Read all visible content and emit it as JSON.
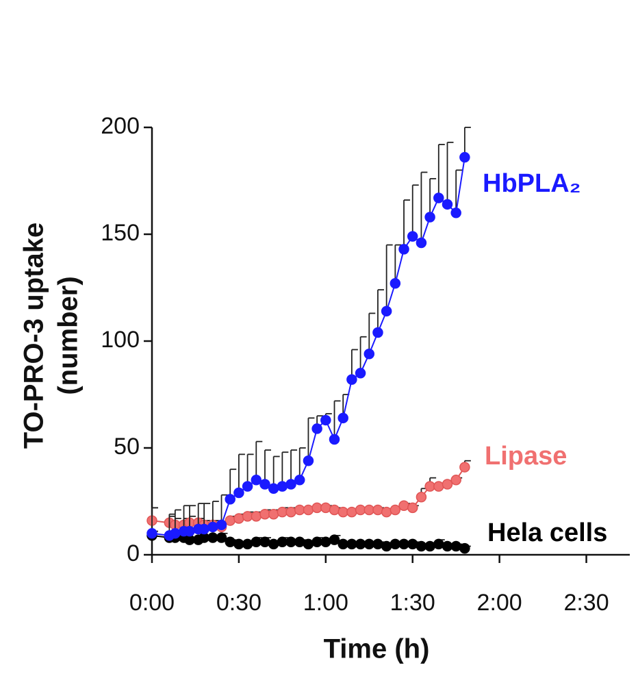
{
  "chart_data": {
    "type": "line",
    "xlabel": "Time (h)",
    "ylabel": [
      "TO-PRO-3 uptake",
      "(number)"
    ],
    "x": [
      0,
      6,
      8,
      11,
      13,
      16,
      18,
      21,
      24,
      27,
      30,
      33,
      36,
      39,
      42,
      45,
      48,
      51,
      54,
      57,
      60,
      63,
      66,
      69,
      72,
      75,
      78,
      81,
      84,
      87,
      90,
      93,
      96,
      99,
      102,
      105,
      108
    ],
    "xlim": [
      0,
      165
    ],
    "xticks": [
      {
        "value": 0,
        "label": "0:00"
      },
      {
        "value": 30,
        "label": "0:30"
      },
      {
        "value": 60,
        "label": "1:00"
      },
      {
        "value": 90,
        "label": "1:30"
      },
      {
        "value": 120,
        "label": "2:00"
      },
      {
        "value": 150,
        "label": "2:30"
      }
    ],
    "ylim": [
      0,
      200
    ],
    "yticks": [
      0,
      50,
      100,
      150,
      200
    ],
    "series": [
      {
        "name": "Lipase",
        "color": "#f07070",
        "values": [
          16,
          15,
          14,
          14,
          15,
          15,
          14,
          14,
          13,
          16,
          17,
          18,
          18,
          19,
          19,
          20,
          20,
          21,
          21,
          22,
          22,
          21,
          20,
          20,
          21,
          21,
          21,
          20,
          21,
          23,
          22,
          27,
          32,
          32,
          33,
          35,
          41
        ],
        "errors": [
          6,
          3,
          3,
          3,
          3,
          2,
          2,
          2,
          2,
          2,
          2,
          2,
          2,
          2,
          2,
          2,
          2,
          1,
          1,
          1,
          1,
          1,
          1,
          1,
          1,
          1,
          1,
          1,
          1,
          1,
          1,
          4,
          4,
          1,
          1,
          1,
          3
        ]
      },
      {
        "name": "Hela cells",
        "color": "#000000",
        "values": [
          9,
          8,
          8,
          8,
          7,
          7,
          8,
          8,
          8,
          6,
          5,
          5,
          6,
          6,
          5,
          6,
          6,
          6,
          5,
          6,
          6,
          7,
          5,
          5,
          5,
          5,
          5,
          4,
          5,
          5,
          5,
          4,
          4,
          5,
          4,
          4,
          3
        ],
        "errors": [
          2,
          1,
          1,
          1,
          1,
          1,
          1,
          1,
          2,
          1,
          1,
          1,
          2,
          2,
          1,
          2,
          1,
          1,
          1,
          2,
          1,
          2,
          1,
          1,
          1,
          1,
          1,
          1,
          1,
          1,
          1,
          1,
          1,
          2,
          1,
          1,
          1
        ]
      },
      {
        "name": "HbPLA₂",
        "color": "#1a1aff",
        "values": [
          10,
          9,
          10,
          11,
          11,
          12,
          12,
          13,
          14,
          26,
          29,
          32,
          35,
          33,
          31,
          32,
          33,
          35,
          44,
          59,
          63,
          54,
          64,
          82,
          85,
          94,
          104,
          114,
          127,
          143,
          149,
          146,
          158,
          167,
          164,
          160,
          186
        ],
        "errors": [
          12,
          10,
          11,
          12,
          12,
          12,
          12,
          12,
          14,
          14,
          18,
          15,
          18,
          16,
          15,
          16,
          16,
          15,
          20,
          6,
          3,
          18,
          11,
          14,
          17,
          19,
          20,
          31,
          18,
          23,
          24,
          33,
          18,
          25,
          29,
          20,
          14
        ]
      }
    ]
  }
}
